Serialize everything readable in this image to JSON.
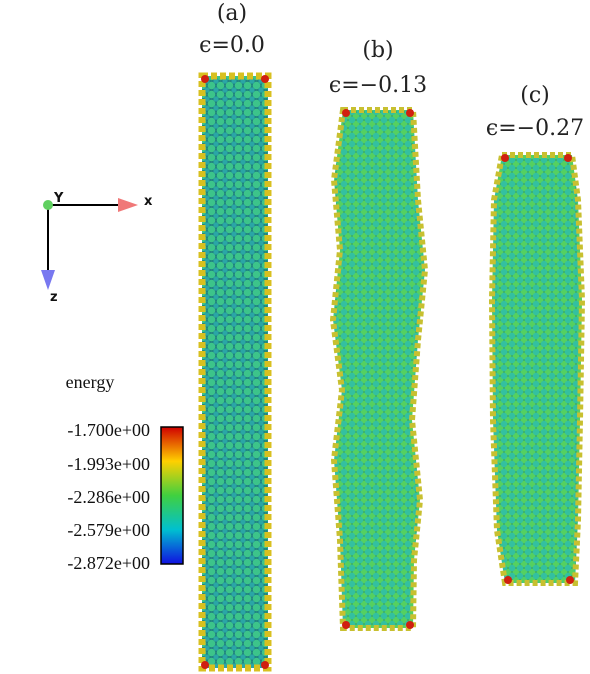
{
  "panels": [
    {
      "label": "(a)",
      "strain": "ϵ=0.0"
    },
    {
      "label": "(b)",
      "strain": "ϵ=−0.13"
    },
    {
      "label": "(c)",
      "strain": "ϵ=−0.27"
    }
  ],
  "axes": {
    "y": "Y",
    "x": "x",
    "z": "z"
  },
  "colorbar": {
    "title": "energy",
    "ticks": [
      "-1.700e+00",
      "-1.993e+00",
      "-2.286e+00",
      "-2.579e+00",
      "-2.872e+00"
    ]
  }
}
